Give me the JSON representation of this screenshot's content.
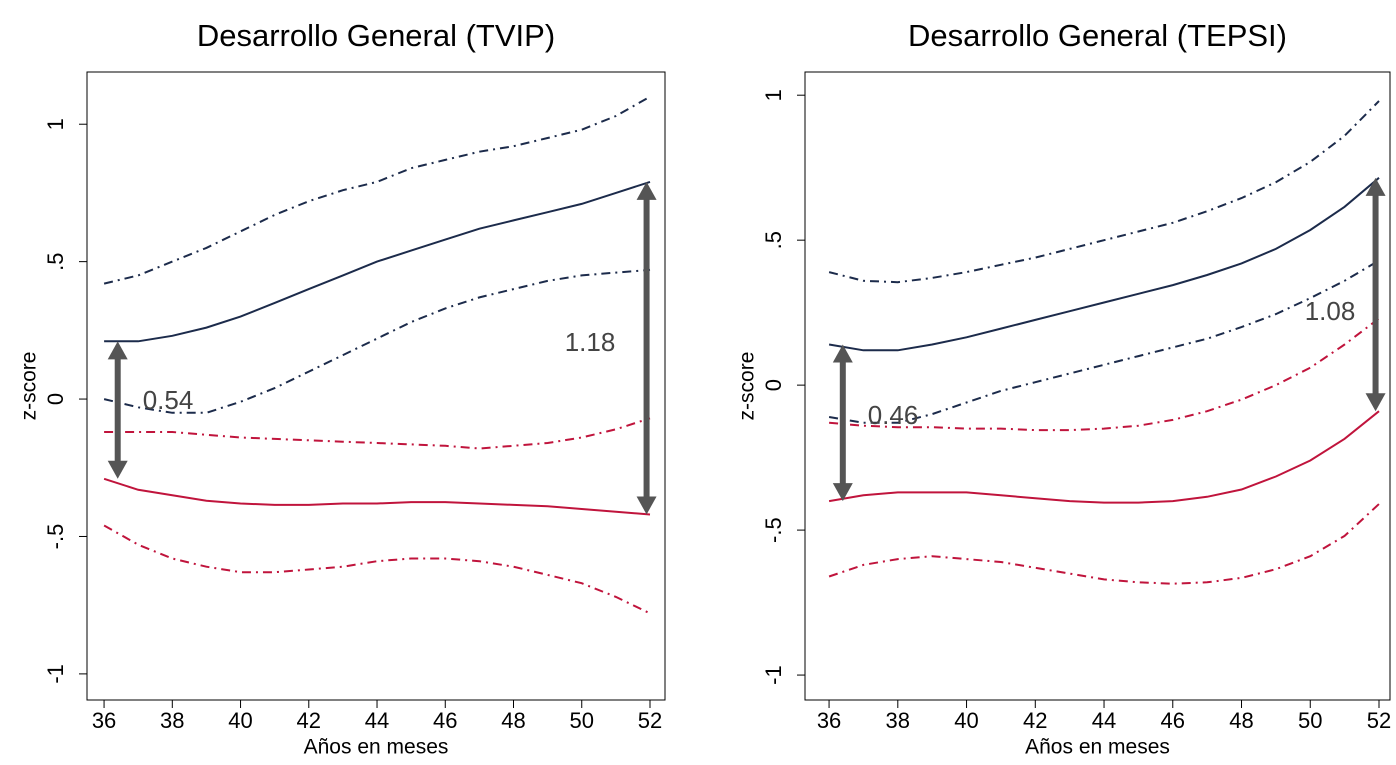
{
  "chart_data": [
    {
      "type": "line",
      "title": "Desarrollo General (TVIP)",
      "xlabel": "Años en meses",
      "ylabel": "z-score",
      "x": [
        36,
        37,
        38,
        39,
        40,
        41,
        42,
        43,
        44,
        45,
        46,
        47,
        48,
        49,
        50,
        51,
        52
      ],
      "xlim": [
        35.5,
        52.44
      ],
      "xticks": [
        36,
        38,
        40,
        42,
        44,
        46,
        48,
        50,
        52
      ],
      "ylim": [
        -1.095,
        1.19
      ],
      "yticks": [
        -1,
        {
          "value": -0.5,
          "label": "-.5"
        },
        0,
        {
          "value": 0.5,
          "label": ".5"
        },
        1
      ],
      "series": [
        {
          "color": "#1c2b4b",
          "style": "solid",
          "values": [
            0.21,
            0.21,
            0.23,
            0.26,
            0.3,
            0.35,
            0.4,
            0.45,
            0.5,
            0.54,
            0.58,
            0.62,
            0.65,
            0.68,
            0.71,
            0.75,
            0.79
          ]
        },
        {
          "color": "#1c2b4b",
          "style": "dashdot",
          "values": [
            0.42,
            0.45,
            0.5,
            0.55,
            0.61,
            0.67,
            0.72,
            0.76,
            0.79,
            0.84,
            0.87,
            0.9,
            0.92,
            0.95,
            0.98,
            1.03,
            1.1
          ]
        },
        {
          "color": "#1c2b4b",
          "style": "dashdot",
          "values": [
            0.0,
            -0.03,
            -0.05,
            -0.05,
            -0.01,
            0.04,
            0.1,
            0.16,
            0.22,
            0.28,
            0.33,
            0.37,
            0.4,
            0.43,
            0.45,
            0.46,
            0.47
          ]
        },
        {
          "color": "#c0143c",
          "style": "solid",
          "values": [
            -0.29,
            -0.33,
            -0.35,
            -0.37,
            -0.38,
            -0.385,
            -0.385,
            -0.38,
            -0.38,
            -0.375,
            -0.375,
            -0.38,
            -0.385,
            -0.39,
            -0.4,
            -0.41,
            -0.42
          ]
        },
        {
          "color": "#c0143c",
          "style": "dashdot",
          "values": [
            -0.12,
            -0.12,
            -0.12,
            -0.13,
            -0.14,
            -0.145,
            -0.15,
            -0.155,
            -0.16,
            -0.165,
            -0.17,
            -0.18,
            -0.17,
            -0.16,
            -0.14,
            -0.11,
            -0.07
          ]
        },
        {
          "color": "#c0143c",
          "style": "dashdot",
          "values": [
            -0.46,
            -0.53,
            -0.58,
            -0.61,
            -0.63,
            -0.63,
            -0.62,
            -0.61,
            -0.59,
            -0.58,
            -0.58,
            -0.59,
            -0.61,
            -0.64,
            -0.67,
            -0.72,
            -0.78
          ]
        }
      ],
      "annotations": [
        {
          "text": "0.54"
        },
        {
          "text": "1.18"
        }
      ]
    },
    {
      "type": "line",
      "title": "Desarrollo General (TEPSI)",
      "xlabel": "Años en meses",
      "ylabel": "z-score",
      "x": [
        36,
        37,
        38,
        39,
        40,
        41,
        42,
        43,
        44,
        45,
        46,
        47,
        48,
        49,
        50,
        51,
        52
      ],
      "xlim": [
        35.3,
        52.32
      ],
      "xticks": [
        36,
        38,
        40,
        42,
        44,
        46,
        48,
        50,
        52
      ],
      "ylim": [
        -1.086,
        1.08
      ],
      "yticks": [
        -1,
        {
          "value": -0.5,
          "label": "-.5"
        },
        0,
        {
          "value": 0.5,
          "label": ".5"
        },
        1
      ],
      "series": [
        {
          "color": "#1c2b4b",
          "style": "solid",
          "values": [
            0.14,
            0.12,
            0.12,
            0.14,
            0.165,
            0.195,
            0.225,
            0.255,
            0.285,
            0.315,
            0.345,
            0.38,
            0.42,
            0.47,
            0.535,
            0.615,
            0.715
          ]
        },
        {
          "color": "#1c2b4b",
          "style": "dashdot",
          "values": [
            0.39,
            0.36,
            0.355,
            0.37,
            0.39,
            0.415,
            0.44,
            0.47,
            0.5,
            0.53,
            0.56,
            0.6,
            0.645,
            0.7,
            0.77,
            0.86,
            0.98
          ]
        },
        {
          "color": "#1c2b4b",
          "style": "dashdot",
          "values": [
            -0.11,
            -0.13,
            -0.13,
            -0.1,
            -0.06,
            -0.02,
            0.01,
            0.04,
            0.07,
            0.1,
            0.13,
            0.16,
            0.2,
            0.245,
            0.3,
            0.36,
            0.43
          ]
        },
        {
          "color": "#c0143c",
          "style": "solid",
          "values": [
            -0.4,
            -0.38,
            -0.37,
            -0.37,
            -0.37,
            -0.38,
            -0.39,
            -0.4,
            -0.405,
            -0.405,
            -0.4,
            -0.385,
            -0.36,
            -0.315,
            -0.26,
            -0.185,
            -0.09
          ]
        },
        {
          "color": "#c0143c",
          "style": "dashdot",
          "values": [
            -0.13,
            -0.14,
            -0.145,
            -0.145,
            -0.15,
            -0.15,
            -0.155,
            -0.155,
            -0.15,
            -0.14,
            -0.12,
            -0.09,
            -0.05,
            0.0,
            0.06,
            0.14,
            0.23
          ]
        },
        {
          "color": "#c0143c",
          "style": "dashdot",
          "values": [
            -0.66,
            -0.62,
            -0.6,
            -0.59,
            -0.6,
            -0.61,
            -0.63,
            -0.65,
            -0.67,
            -0.68,
            -0.685,
            -0.68,
            -0.665,
            -0.635,
            -0.59,
            -0.52,
            -0.41
          ]
        }
      ],
      "annotations": [
        {
          "text": "0.46"
        },
        {
          "text": "1.08"
        }
      ]
    }
  ]
}
